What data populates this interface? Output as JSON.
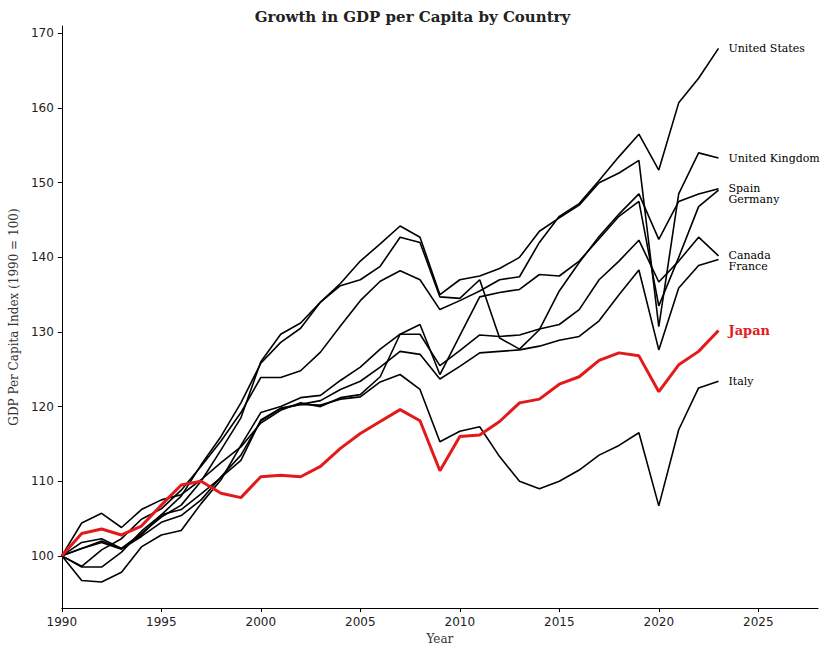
{
  "chart_data": {
    "type": "line",
    "title": "Growth in GDP per Capita by Country",
    "x_label": "Year",
    "y_label": "GDP Per Capita Index (1990 = 100)",
    "x": [
      1990,
      1991,
      1992,
      1993,
      1994,
      1995,
      1996,
      1997,
      1998,
      1999,
      2000,
      2001,
      2002,
      2003,
      2004,
      2005,
      2006,
      2007,
      2008,
      2009,
      2010,
      2011,
      2012,
      2013,
      2014,
      2015,
      2016,
      2017,
      2018,
      2019,
      2020,
      2021,
      2022,
      2023
    ],
    "xlim": [
      1990,
      2028
    ],
    "xticks": [
      1990,
      1995,
      2000,
      2005,
      2010,
      2015,
      2020,
      2025
    ],
    "ylim": [
      93,
      171
    ],
    "yticks": [
      100,
      110,
      120,
      130,
      140,
      150,
      160,
      170
    ],
    "grid": false,
    "series": [
      {
        "name": "United States",
        "color": "#000000",
        "values": [
          100,
          98.6,
          100.8,
          102.3,
          104.9,
          106.3,
          108.8,
          112.0,
          115.4,
          119.2,
          123.9,
          123.9,
          124.8,
          127.3,
          130.8,
          134.2,
          136.8,
          138.2,
          137.0,
          133.0,
          134.2,
          135.5,
          137.0,
          137.4,
          142.0,
          145.5,
          147.2,
          150.3,
          153.5,
          156.5,
          151.7,
          160.7,
          164.0,
          168.0
        ]
      },
      {
        "name": "United Kingdom",
        "color": "#000000",
        "values": [
          100,
          98.5,
          98.5,
          100.5,
          103.3,
          105.5,
          108.0,
          112.2,
          116.0,
          120.5,
          125.8,
          128.6,
          130.5,
          134.0,
          136.5,
          139.5,
          141.8,
          144.2,
          142.7,
          135.0,
          137.0,
          137.5,
          138.5,
          140.0,
          143.5,
          145.3,
          147.0,
          150.0,
          151.3,
          153.0,
          130.7,
          148.5,
          154.0,
          153.3
        ]
      },
      {
        "name": "Spain",
        "color": "#000000",
        "values": [
          100,
          101.8,
          102.3,
          101.0,
          103.0,
          105.2,
          106.8,
          110.0,
          114.2,
          118.5,
          126.0,
          129.7,
          131.2,
          134.0,
          136.2,
          137.0,
          138.8,
          142.7,
          142.0,
          134.7,
          134.5,
          137.0,
          129.2,
          127.7,
          130.3,
          135.5,
          139.3,
          142.8,
          145.8,
          148.5,
          142.4,
          147.5,
          148.5,
          149.2
        ]
      },
      {
        "name": "Germany",
        "color": "#000000",
        "values": [
          100,
          104.4,
          105.7,
          103.8,
          106.2,
          107.5,
          108.2,
          110.2,
          112.5,
          114.6,
          117.8,
          119.5,
          120.5,
          120.0,
          121.2,
          121.6,
          124.0,
          129.7,
          131.0,
          124.3,
          129.5,
          134.7,
          135.3,
          135.7,
          137.7,
          137.5,
          139.5,
          142.5,
          145.5,
          147.5,
          133.5,
          140.0,
          146.8,
          149.0
        ]
      },
      {
        "name": "Canada",
        "color": "#000000",
        "values": [
          100,
          96.7,
          96.5,
          97.8,
          101.2,
          102.8,
          103.4,
          107.0,
          110.2,
          114.8,
          119.2,
          120.0,
          121.2,
          121.5,
          123.5,
          125.3,
          127.7,
          129.7,
          129.7,
          125.5,
          127.5,
          129.6,
          129.4,
          129.6,
          130.4,
          131.0,
          133.0,
          137.0,
          139.5,
          142.3,
          136.7,
          139.5,
          142.7,
          140.2
        ]
      },
      {
        "name": "France",
        "color": "#000000",
        "values": [
          100,
          101.0,
          101.8,
          100.9,
          102.6,
          104.5,
          105.4,
          107.5,
          110.6,
          113.5,
          118.1,
          119.7,
          120.3,
          120.8,
          122.3,
          123.4,
          125.3,
          127.4,
          127.0,
          123.7,
          125.4,
          127.2,
          127.4,
          127.6,
          128.1,
          128.9,
          129.4,
          131.5,
          135.0,
          138.3,
          127.6,
          135.9,
          138.9,
          139.7
        ]
      },
      {
        "name": "Japan",
        "color": "#e31a1c",
        "values": [
          100,
          103.0,
          103.6,
          102.8,
          104.0,
          106.8,
          109.5,
          110.0,
          108.4,
          107.8,
          110.6,
          110.8,
          110.6,
          112.0,
          114.4,
          116.4,
          118.0,
          119.6,
          118.1,
          111.4,
          116.0,
          116.2,
          118.0,
          120.5,
          121.0,
          123.0,
          124.0,
          126.2,
          127.2,
          126.8,
          122.0,
          125.6,
          127.4,
          130.2
        ]
      },
      {
        "name": "Italy",
        "color": "#000000",
        "values": [
          100,
          101.0,
          102.0,
          101.0,
          102.8,
          105.5,
          106.2,
          108.3,
          110.5,
          112.8,
          118.2,
          119.8,
          120.3,
          120.2,
          121.0,
          121.3,
          123.3,
          124.3,
          122.3,
          115.3,
          116.7,
          117.3,
          113.3,
          110.0,
          109.0,
          110.0,
          111.5,
          113.5,
          114.8,
          116.5,
          106.7,
          116.9,
          122.5,
          123.4
        ]
      }
    ]
  }
}
